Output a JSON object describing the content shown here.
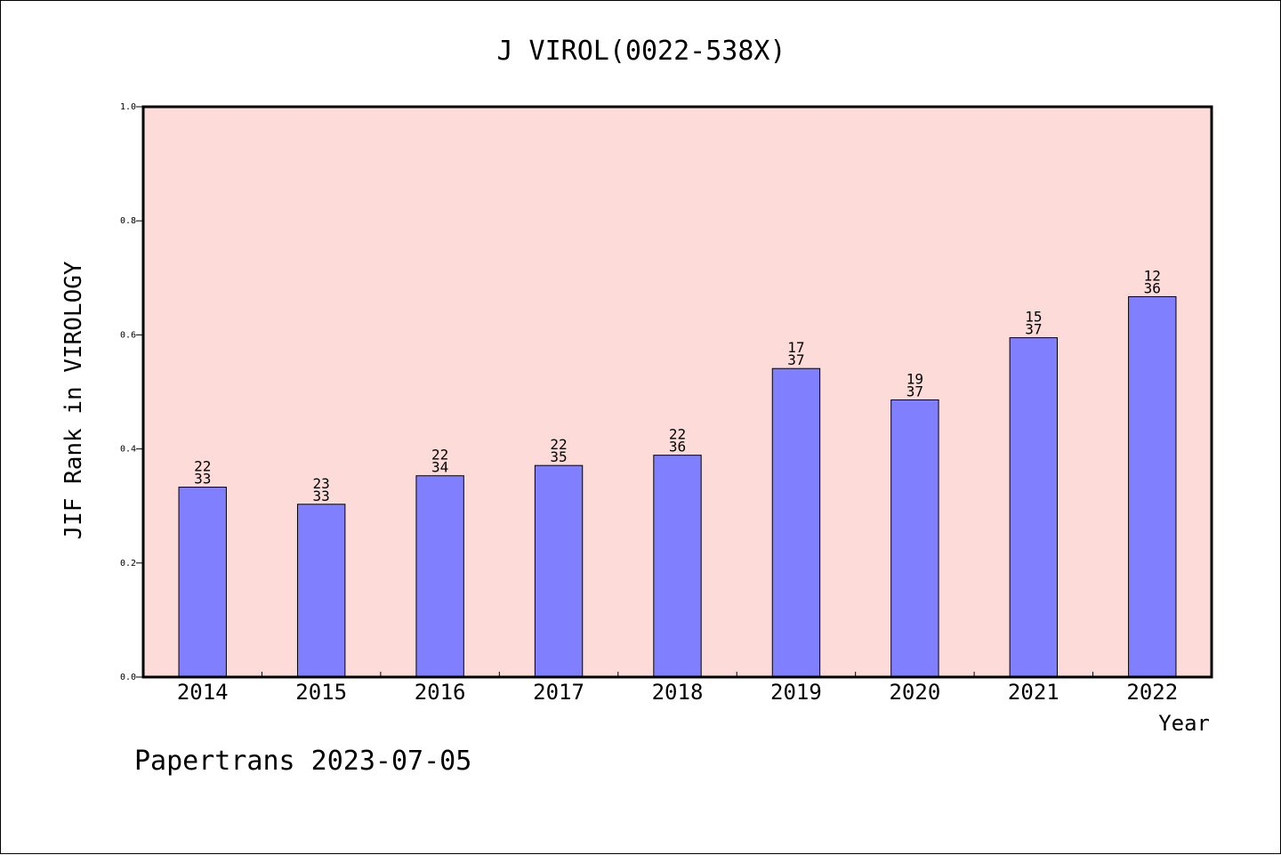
{
  "colors": {
    "plot_background": "#fddbd8",
    "bar_fill": "#8080ff",
    "bar_stroke": "#000000",
    "axis": "#000000"
  },
  "footer": "Papertrans 2023-07-05",
  "chart_data": {
    "type": "bar",
    "title": "J VIROL(0022-538X)",
    "xlabel": "Year",
    "ylabel": "JIF Rank in VIROLOGY",
    "ylim": [
      0,
      1
    ],
    "yticks": [
      "0.0",
      "0.2",
      "0.4",
      "0.6",
      "0.8",
      "1.0"
    ],
    "grid": false,
    "categories": [
      "2014",
      "2015",
      "2016",
      "2017",
      "2018",
      "2019",
      "2020",
      "2021",
      "2022"
    ],
    "values": [
      0.333,
      0.303,
      0.353,
      0.371,
      0.389,
      0.541,
      0.486,
      0.595,
      0.667
    ],
    "data_labels": [
      [
        "22",
        "33"
      ],
      [
        "23",
        "33"
      ],
      [
        "22",
        "34"
      ],
      [
        "22",
        "35"
      ],
      [
        "22",
        "36"
      ],
      [
        "17",
        "37"
      ],
      [
        "19",
        "37"
      ],
      [
        "15",
        "37"
      ],
      [
        "12",
        "36"
      ]
    ]
  }
}
